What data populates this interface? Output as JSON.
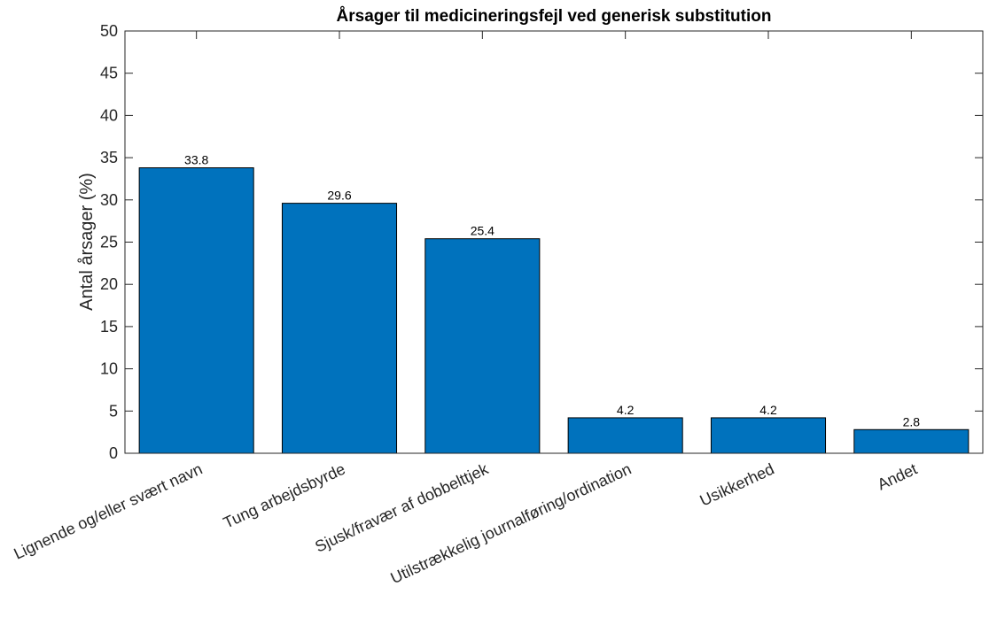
{
  "chart_data": {
    "type": "bar",
    "title": "Årsager til medicineringsfejl ved generisk substitution",
    "xlabel": "",
    "ylabel": "Antal årsager (%)",
    "ylim": [
      0,
      50
    ],
    "yticks": [
      0,
      5,
      10,
      15,
      20,
      25,
      30,
      35,
      40,
      45,
      50
    ],
    "categories": [
      "Lignende og/eller svært navn",
      "Tung arbejdsbyrde",
      "Sjusk/fravær af dobbelttjek",
      "Utilstrækkelig journalføring/ordination",
      "Usikkerhed",
      "Andet"
    ],
    "values": [
      33.8,
      29.6,
      25.4,
      4.2,
      4.2,
      2.8
    ],
    "data_labels": [
      "33.8",
      "29.6",
      "25.4",
      "4.2",
      "4.2",
      "2.8"
    ],
    "bar_color": "#0072bd",
    "grid": false,
    "legend": "none"
  }
}
